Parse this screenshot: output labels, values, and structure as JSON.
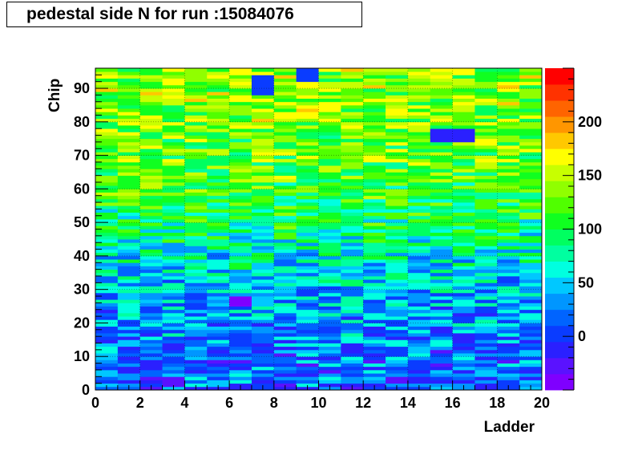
{
  "title": "pedestal side N for run :15084076",
  "chart_data": {
    "type": "heatmap",
    "xlabel": "Ladder",
    "ylabel": "Chip",
    "xlim": [
      0,
      20
    ],
    "ylim": [
      0,
      96
    ],
    "x_ticks": [
      "0",
      "2",
      "4",
      "6",
      "8",
      "10",
      "12",
      "14",
      "16",
      "18",
      "20"
    ],
    "y_ticks": [
      "0",
      "10",
      "20",
      "30",
      "40",
      "50",
      "60",
      "70",
      "80",
      "90"
    ],
    "x_bins": 20,
    "y_bins": 96,
    "color_scale": {
      "min": -50,
      "max": 250,
      "ticks": [
        "0",
        "50",
        "100",
        "150",
        "200"
      ],
      "palette": [
        "#7f00ff",
        "#5a12ff",
        "#2a20ff",
        "#0a3cff",
        "#0064ff",
        "#0096ff",
        "#00c8ff",
        "#00ffe0",
        "#00ffa0",
        "#00ff60",
        "#10ff20",
        "#50ff00",
        "#90ff00",
        "#c8ff00",
        "#ffff00",
        "#ffc800",
        "#ff9600",
        "#ff6400",
        "#ff3200",
        "#ff0000"
      ]
    },
    "row_mean_profile": {
      "chip_breakpoints": [
        0,
        10,
        20,
        30,
        40,
        50,
        60,
        70,
        80,
        90,
        96
      ],
      "mean_pedestal": [
        15,
        20,
        30,
        45,
        65,
        90,
        110,
        125,
        130,
        135,
        140
      ]
    },
    "features": [
      {
        "ladder_range": [
          15,
          17
        ],
        "chip_range": [
          74,
          78
        ],
        "description_value": -10
      },
      {
        "ladder_range": [
          7,
          8
        ],
        "chip_range": [
          88,
          94
        ],
        "description_value": 0
      },
      {
        "ladder_range": [
          9,
          10
        ],
        "chip_range": [
          92,
          96
        ],
        "description_value": 0
      },
      {
        "ladder_range": [
          6,
          7
        ],
        "chip_range": [
          25,
          28
        ],
        "description_value": -40
      }
    ]
  }
}
